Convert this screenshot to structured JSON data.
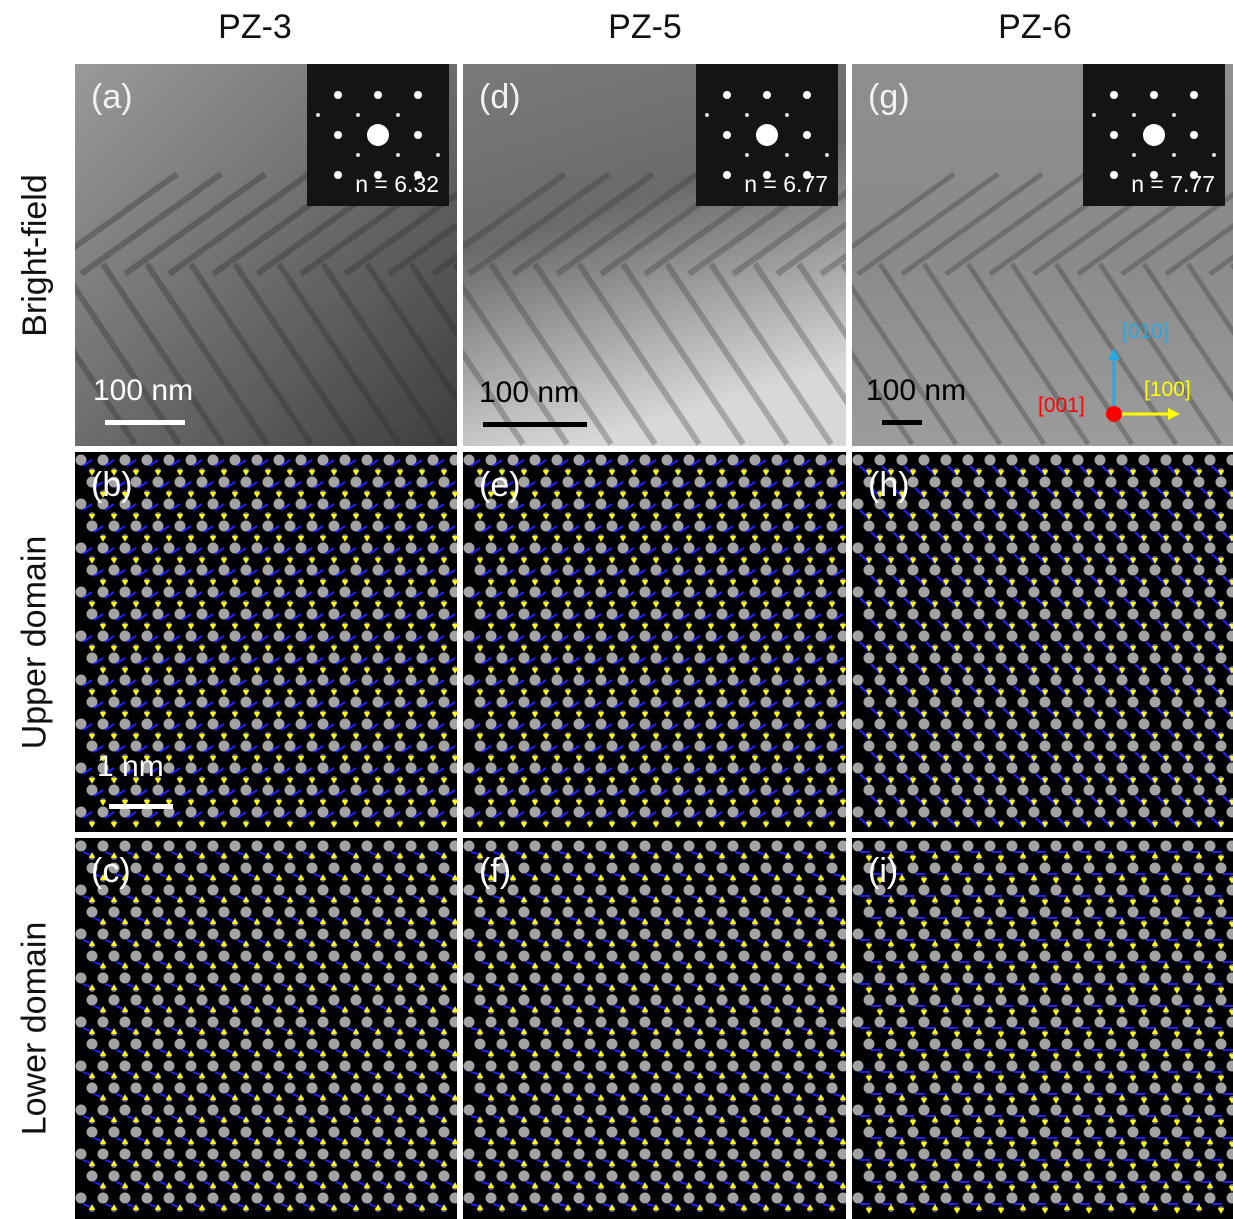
{
  "columns": [
    "PZ-3",
    "PZ-5",
    "PZ-6"
  ],
  "rows": [
    "Bright-field",
    "Upper domain",
    "Lower domain"
  ],
  "panels": {
    "a": {
      "label": "(a)",
      "n": "n = 6.32",
      "scale": "100 nm"
    },
    "b": {
      "label": "(b)",
      "scale": "1 nm"
    },
    "c": {
      "label": "(c)"
    },
    "d": {
      "label": "(d)",
      "n": "n = 6.77",
      "scale": "100 nm"
    },
    "e": {
      "label": "(e)"
    },
    "f": {
      "label": "(f)"
    },
    "g": {
      "label": "(g)",
      "n": "n = 7.77",
      "scale": "100 nm"
    },
    "h": {
      "label": "(h)"
    },
    "i": {
      "label": "(i)"
    }
  },
  "axes": {
    "y": "[010]",
    "x": "[100]",
    "z": "[001]"
  },
  "colors": {
    "y_axis": "#2aa7e0",
    "x_axis": "#ffff00",
    "z_axis": "#ff0000",
    "arrow_blue": "#1a1aff",
    "arrow_yellow": "#ffff00"
  }
}
